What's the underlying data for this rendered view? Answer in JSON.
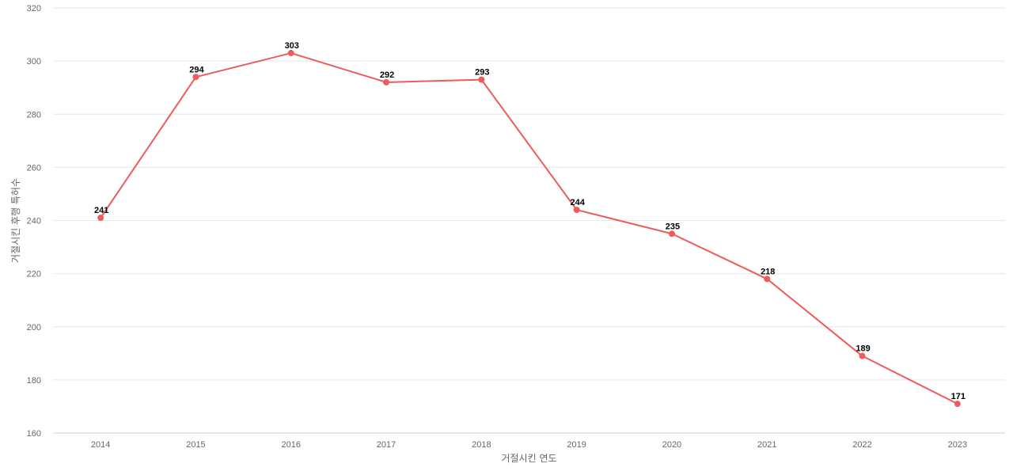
{
  "chart_data": {
    "type": "line",
    "title": "",
    "xlabel": "거절시킨 연도",
    "ylabel": "거절시킨 후행 특허수",
    "ylim": [
      160,
      320
    ],
    "yticks": [
      160,
      180,
      200,
      220,
      240,
      260,
      280,
      300,
      320
    ],
    "grid": true,
    "categories": [
      "2014",
      "2015",
      "2016",
      "2017",
      "2018",
      "2019",
      "2020",
      "2021",
      "2022",
      "2023"
    ],
    "series": [
      {
        "color": "#ef5b5b",
        "values": [
          241,
          294,
          303,
          292,
          293,
          244,
          235,
          218,
          189,
          171
        ]
      }
    ]
  }
}
